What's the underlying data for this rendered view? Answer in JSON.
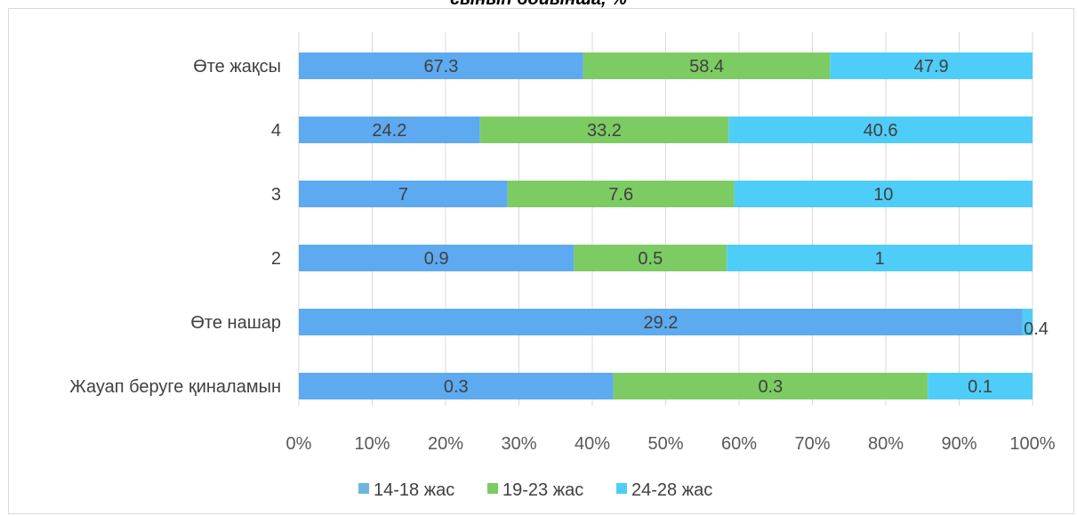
{
  "chart_data": {
    "type": "bar",
    "orientation": "horizontal",
    "stacked": "percent",
    "title": "сынып бойынша, %",
    "categories": [
      "Өте жақсы",
      "4",
      "3",
      "2",
      "Өте нашар",
      "Жауап беруге қиналамын"
    ],
    "series": [
      {
        "name": "14-18 жас",
        "values": [
          67.3,
          24.2,
          7,
          0.9,
          29.2,
          0.3
        ],
        "labels": [
          "67.3",
          "24.2",
          "7",
          "0.9",
          "29.2",
          "0.3"
        ]
      },
      {
        "name": "19-23 жас",
        "values": [
          58.4,
          33.2,
          7.6,
          0.5,
          0,
          0.3
        ],
        "labels": [
          "58.4",
          "33.2",
          "7.6",
          "0.5",
          "",
          "0.3"
        ]
      },
      {
        "name": "24-28 жас",
        "values": [
          47.9,
          40.6,
          10,
          1,
          0.4,
          0.1
        ],
        "labels": [
          "47.9",
          "40.6",
          "10",
          "1",
          "0.4",
          "0.1"
        ]
      }
    ],
    "xticks": [
      "0%",
      "10%",
      "20%",
      "30%",
      "40%",
      "50%",
      "60%",
      "70%",
      "80%",
      "90%",
      "100%"
    ],
    "xlim": [
      0,
      100
    ],
    "grid": true,
    "legend_position": "bottom",
    "colors": [
      "#5eaaf0",
      "#7ccc63",
      "#4fcdf9"
    ],
    "legend_colors": [
      "#6fb6dd",
      "#7ccc63",
      "#4fcdf9"
    ]
  }
}
